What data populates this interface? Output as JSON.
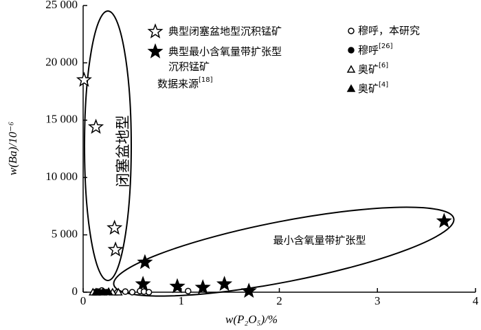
{
  "chart_data": {
    "type": "scatter",
    "x_label": "w(P₂O₅)/%",
    "y_label": "w(Ba)/10⁻⁶",
    "xlim": [
      0,
      4
    ],
    "xticks": [
      0,
      1,
      2,
      3,
      4
    ],
    "ylim": [
      0,
      25000
    ],
    "yticks": [
      0,
      {
        "value": 5000,
        "label": "5 000"
      },
      {
        "value": 10000,
        "label": "10 000"
      },
      {
        "value": 15000,
        "label": "15 000"
      },
      {
        "value": 20000,
        "label": "20 000"
      },
      {
        "value": 25000,
        "label": "25 000"
      }
    ],
    "annotations": [
      "闭塞盆地型",
      "最小含氧量带扩张型"
    ],
    "legend_note": "数据来源[18]",
    "series": [
      {
        "name": "典型闭塞盆地型沉积锰矿",
        "marker": "open-star",
        "color": "#000000",
        "x": [
          0.01,
          0.13,
          0.32,
          0.33
        ],
        "values": [
          18500,
          14400,
          5600,
          3700
        ]
      },
      {
        "name": "典型最小含氧量带扩张型沉积锰矿",
        "marker": "filled-star",
        "color": "#000000",
        "x": [
          0.63,
          0.61,
          0.96,
          1.22,
          1.44,
          1.69,
          3.68
        ],
        "values": [
          2600,
          700,
          500,
          400,
          700,
          100,
          6200
        ]
      },
      {
        "name": "穆呼，本研究",
        "marker": "open-circle",
        "color": "#000000",
        "x": [
          0.19,
          0.15,
          0.22,
          0.35,
          0.43,
          0.5,
          0.58,
          0.62,
          0.67,
          1.07
        ],
        "values": [
          150,
          50,
          0,
          0,
          50,
          0,
          100,
          50,
          0,
          100
        ]
      },
      {
        "name": "穆呼[26]",
        "marker": "filled-circle",
        "color": "#000000",
        "x": [
          0.12,
          0.17,
          0.24
        ],
        "values": [
          0,
          0,
          0
        ]
      },
      {
        "name": "奥矿[6]",
        "marker": "open-triangle",
        "color": "#000000",
        "x": [
          0.1,
          0.14,
          0.3,
          0.36
        ],
        "values": [
          0,
          0,
          0,
          0
        ]
      },
      {
        "name": "奥矿[4]",
        "marker": "filled-triangle",
        "color": "#000000",
        "x": [
          0.13,
          0.2,
          0.26
        ],
        "values": [
          0,
          0,
          50
        ]
      }
    ]
  }
}
